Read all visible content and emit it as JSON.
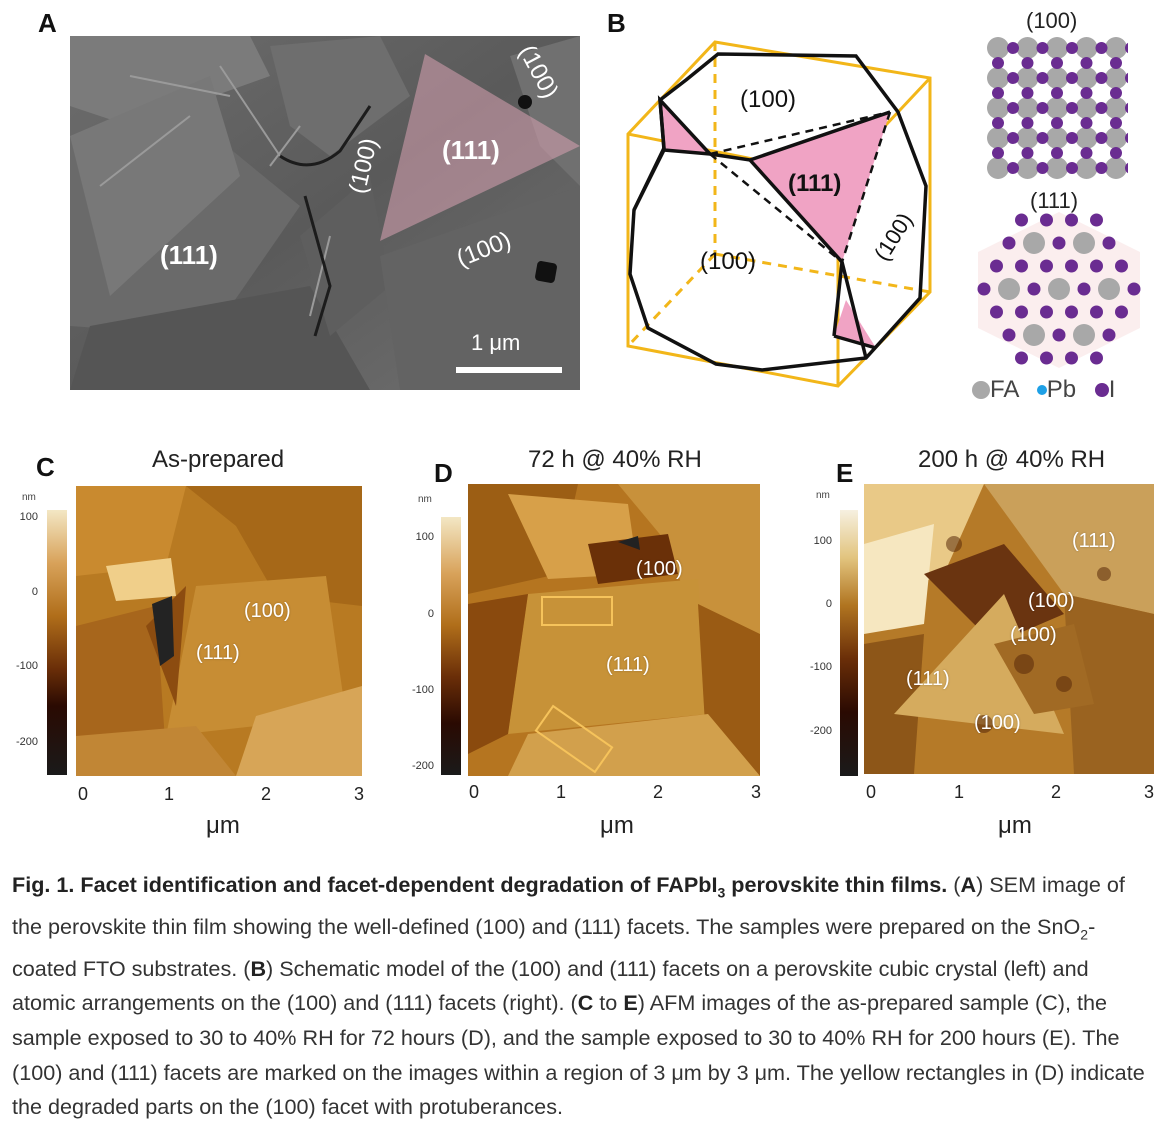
{
  "panels": {
    "A": {
      "letter": "A",
      "facets": [
        "(100)",
        "(111)",
        "(100)",
        "(111)",
        "(100)"
      ],
      "scale_bar": "1 μm"
    },
    "B": {
      "letter": "B",
      "crystal_facets": [
        "(100)",
        "(111)",
        "(100)",
        "(100)"
      ],
      "lattice_100_title": "(100)",
      "lattice_111_title": "(111)",
      "legend": [
        {
          "label": "FA",
          "color": "#a8a8a8"
        },
        {
          "label": "Pb",
          "color": "#1ea0e6"
        },
        {
          "label": "I",
          "color": "#6a2c91"
        }
      ]
    },
    "C": {
      "letter": "C",
      "title": "As-prepared",
      "facets": [
        "(100)",
        "(111)"
      ],
      "colorbar_unit": "nm",
      "colorbar_ticks": [
        "100",
        "0",
        "-100",
        "-200"
      ],
      "x_ticks": [
        "0",
        "1",
        "2",
        "3"
      ],
      "x_unit": "μm"
    },
    "D": {
      "letter": "D",
      "title": "72 h @ 40% RH",
      "facets": [
        "(100)",
        "(111)"
      ],
      "colorbar_unit": "nm",
      "colorbar_ticks": [
        "100",
        "0",
        "-100",
        "-200"
      ],
      "x_ticks": [
        "0",
        "1",
        "2",
        "3"
      ],
      "x_unit": "μm"
    },
    "E": {
      "letter": "E",
      "title": "200 h @ 40% RH",
      "facets": [
        "(111)",
        "(100)",
        "(100)",
        "(111)",
        "(100)"
      ],
      "colorbar_unit": "nm",
      "colorbar_ticks": [
        "100",
        "0",
        "-100",
        "-200"
      ],
      "x_ticks": [
        "0",
        "1",
        "2",
        "3"
      ],
      "x_unit": "μm"
    }
  },
  "caption": {
    "lead_1": "Fig. 1. Facet identification and facet-dependent degradation of FAPbI",
    "lead_sub": "3",
    "lead_2": " perovskite thin films.",
    "p1": " (",
    "A": "A",
    "p2": ") SEM image of the perovskite thin film showing the well-defined (100) and (111) facets. The samples were prepared on the SnO",
    "sub2": "2",
    "p3": "-coated FTO substrates. (",
    "B": "B",
    "p4": ") Schematic model of the (100) and (111) facets on a perovskite cubic crystal (left) and atomic arrangements on the (100) and (111) facets (right). (",
    "C": "C",
    "p5": " to ",
    "E": "E",
    "p6": ") AFM images of the as-prepared sample (C), the sample exposed to 30 to 40% RH for 72 hours (D), and the sample exposed to 30 to 40% RH for 200 hours (E). The (100) and (111) facets are marked on the images within a region of 3 μm by 3 μm. The yellow rectangles in (D) indicate the degraded parts on the (100) facet with protuberances."
  }
}
